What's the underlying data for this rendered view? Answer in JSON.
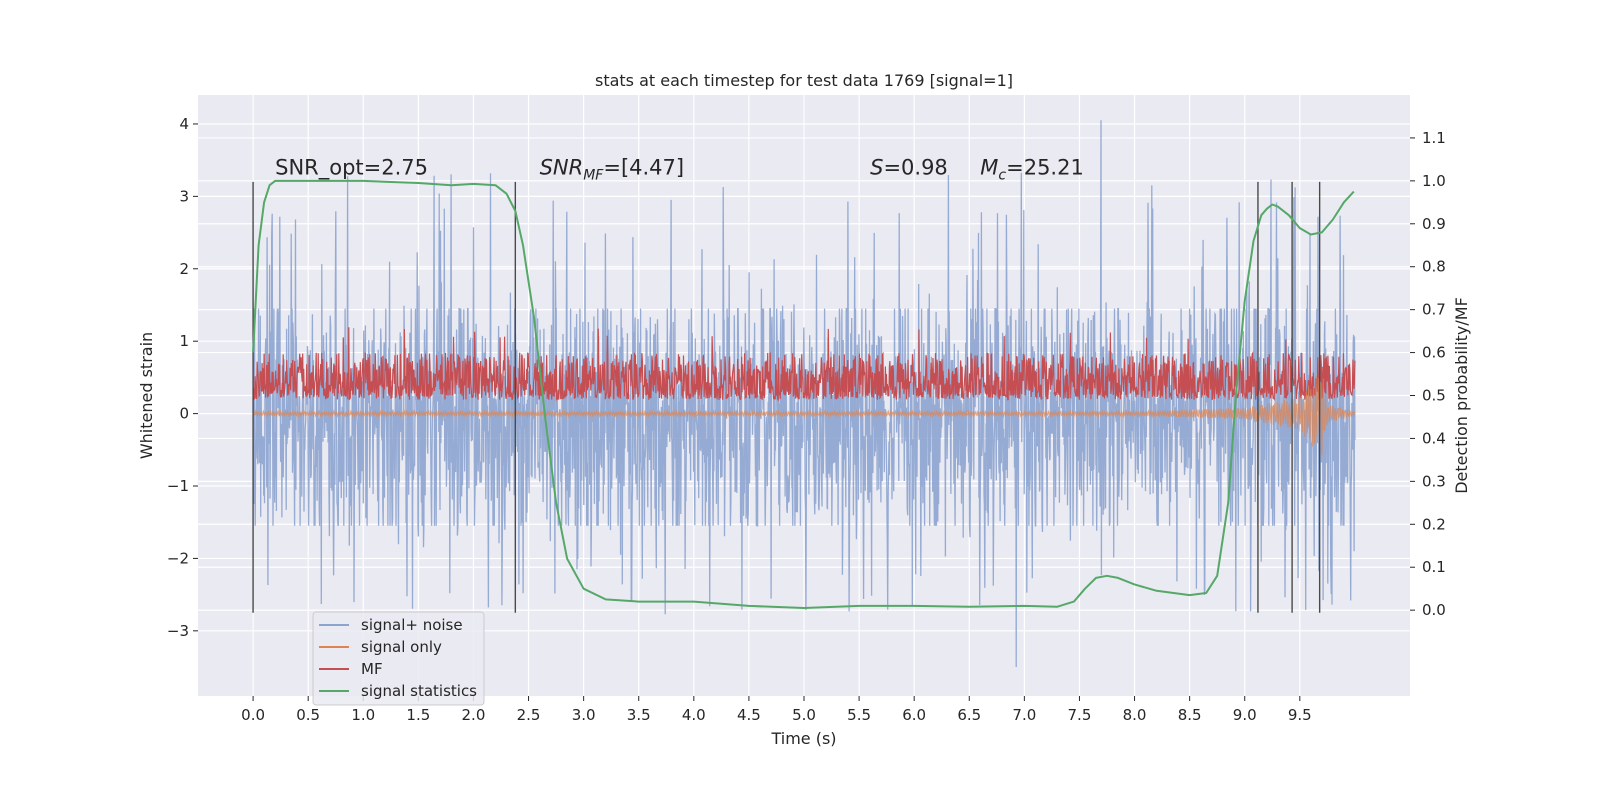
{
  "chart_data": {
    "type": "line",
    "title": "stats at each timestep for test data 1769 [signal=1]",
    "xlabel": "Time (s)",
    "ylabel_left": "Whitened strain",
    "ylabel_right": "Detection probability/MF",
    "xlim": [
      -0.5,
      10.5
    ],
    "ylim_left": [
      -3.9,
      4.4
    ],
    "ylim_right": [
      -0.2,
      1.2
    ],
    "xticks": [
      0.0,
      0.5,
      1.0,
      1.5,
      2.0,
      2.5,
      3.0,
      3.5,
      4.0,
      4.5,
      5.0,
      5.5,
      6.0,
      6.5,
      7.0,
      7.5,
      8.0,
      8.5,
      9.0,
      9.5
    ],
    "xtick_labels": [
      "0.0",
      "0.5",
      "1.0",
      "1.5",
      "2.0",
      "2.5",
      "3.0",
      "3.5",
      "4.0",
      "4.5",
      "5.0",
      "5.5",
      "6.0",
      "6.5",
      "7.0",
      "7.5",
      "8.0",
      "8.5",
      "9.0",
      "9.5"
    ],
    "yticks_left": [
      -3,
      -2,
      -1,
      0,
      1,
      2,
      3,
      4
    ],
    "ytick_labels_left": [
      "−3",
      "−2",
      "−1",
      "0",
      "1",
      "2",
      "3",
      "4"
    ],
    "yticks_right": [
      0.0,
      0.1,
      0.2,
      0.3,
      0.4,
      0.5,
      0.6,
      0.7,
      0.8,
      0.9,
      1.0,
      1.1
    ],
    "ytick_labels_right": [
      "0.0",
      "0.1",
      "0.2",
      "0.3",
      "0.4",
      "0.5",
      "0.6",
      "0.7",
      "0.8",
      "0.9",
      "1.0",
      "1.1"
    ],
    "grid": true,
    "legend_position": "lower-left",
    "colors": {
      "background": "#eaeaf2",
      "grid": "#ffffff",
      "signal_noise": "#8da4cf",
      "signal_only": "#dd8452",
      "mf": "#c44e52",
      "statistics": "#55a868",
      "vlines": "#4a4a4a"
    },
    "series": [
      {
        "name": "signal+ noise",
        "axis": "left",
        "style": "dense-noise",
        "x_range": [
          0.0,
          10.0
        ],
        "typical_range": [
          -1.55,
          1.45
        ],
        "extremes": [
          -3.5,
          4.05
        ]
      },
      {
        "name": "signal only",
        "axis": "left",
        "style": "chirp",
        "x_range": [
          0.0,
          10.0
        ],
        "points": [
          [
            0.0,
            0.0
          ],
          [
            8.0,
            0.0
          ],
          [
            9.0,
            -0.05
          ],
          [
            9.5,
            -0.2
          ],
          [
            9.7,
            -0.6
          ],
          [
            9.75,
            -0.1
          ],
          [
            10.0,
            0.0
          ]
        ]
      },
      {
        "name": "MF",
        "axis": "right",
        "style": "dense-noise",
        "x_range": [
          0.0,
          10.0
        ],
        "typical_range": [
          0.5,
          0.6
        ],
        "extremes": [
          0.49,
          0.66
        ]
      },
      {
        "name": "signal statistics",
        "axis": "right",
        "x": [
          0.0,
          0.05,
          0.1,
          0.15,
          0.2,
          0.3,
          0.5,
          1.0,
          1.5,
          1.8,
          2.0,
          2.2,
          2.3,
          2.38,
          2.45,
          2.55,
          2.65,
          2.75,
          2.85,
          3.0,
          3.2,
          3.5,
          3.7,
          4.0,
          4.5,
          5.0,
          5.5,
          6.0,
          6.5,
          7.0,
          7.3,
          7.45,
          7.55,
          7.65,
          7.75,
          7.85,
          8.0,
          8.2,
          8.5,
          8.65,
          8.75,
          8.85,
          8.92,
          9.0,
          9.08,
          9.15,
          9.2,
          9.25,
          9.3,
          9.4,
          9.5,
          9.6,
          9.7,
          9.8,
          9.9,
          9.99
        ],
        "y": [
          0.6,
          0.85,
          0.95,
          0.99,
          1.0,
          1.0,
          1.0,
          1.0,
          0.995,
          0.99,
          0.993,
          0.99,
          0.97,
          0.93,
          0.85,
          0.68,
          0.45,
          0.25,
          0.12,
          0.05,
          0.025,
          0.02,
          0.02,
          0.02,
          0.01,
          0.005,
          0.01,
          0.01,
          0.008,
          0.01,
          0.008,
          0.02,
          0.05,
          0.075,
          0.08,
          0.075,
          0.06,
          0.045,
          0.035,
          0.04,
          0.08,
          0.25,
          0.5,
          0.72,
          0.86,
          0.92,
          0.935,
          0.945,
          0.94,
          0.92,
          0.89,
          0.875,
          0.88,
          0.91,
          0.95,
          0.975
        ]
      }
    ],
    "vlines": {
      "x": [
        0.0,
        2.38,
        9.12,
        9.43,
        9.68
      ],
      "ymin": -2.75,
      "ymax": 3.2
    },
    "annotations": [
      {
        "text": "SNR_opt=2.75",
        "x": 0.2,
        "y": 3.3
      },
      {
        "text": "SNR_MF=[4.47]",
        "x": 2.6,
        "y": 3.3
      },
      {
        "text": "S=0.98",
        "x": 5.6,
        "y": 3.3
      },
      {
        "text": "M_c=25.21",
        "x": 6.6,
        "y": 3.3
      }
    ]
  }
}
